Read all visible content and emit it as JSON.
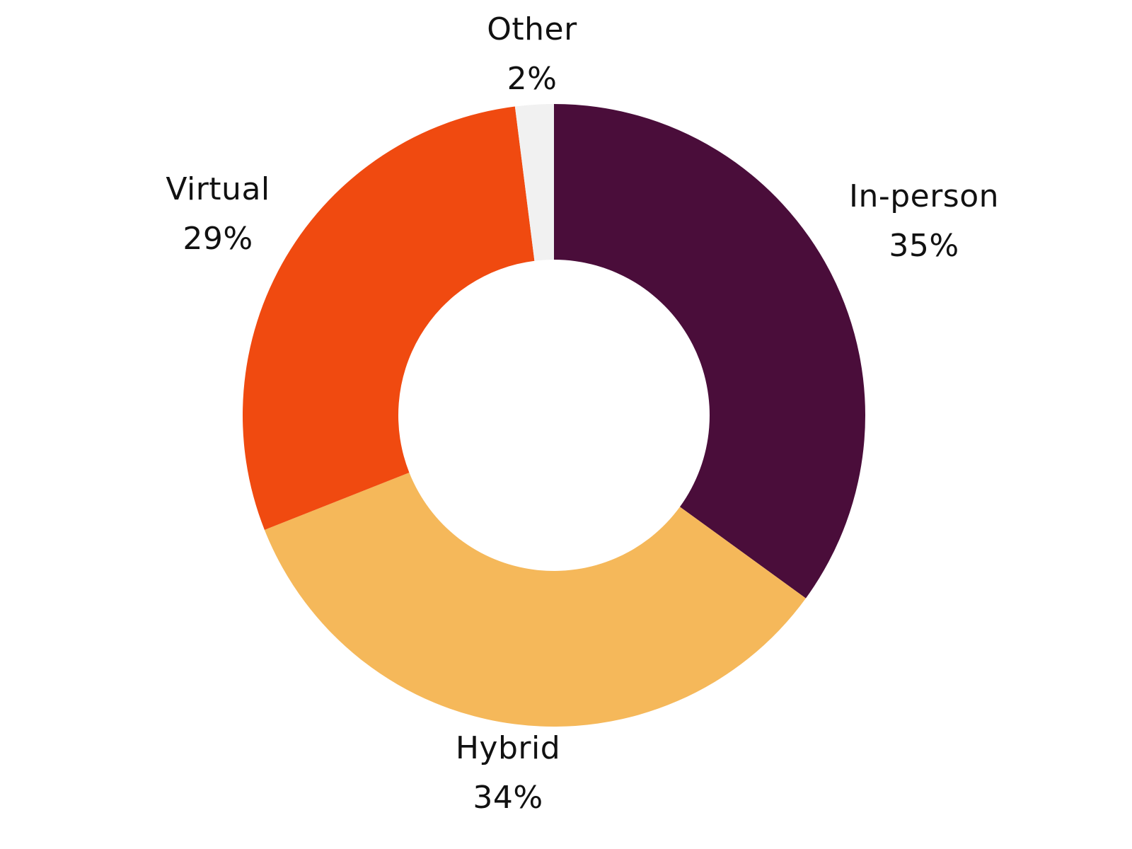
{
  "chart_data": {
    "type": "pie",
    "subtype": "donut",
    "title": "",
    "categories": [
      "In-person",
      "Hybrid",
      "Virtual",
      "Other"
    ],
    "values": [
      35,
      34,
      29,
      2
    ],
    "unit": "%",
    "colors": [
      "#4a0d3a",
      "#f5b85a",
      "#f04a10",
      "#f1f1f1"
    ],
    "start_angle": "12 o'clock",
    "direction": "clockwise",
    "legend": "none (labels placed outside slices)"
  },
  "labels": [
    {
      "name": "In-person",
      "pct": "35%"
    },
    {
      "name": "Hybrid",
      "pct": "34%"
    },
    {
      "name": "Virtual",
      "pct": "29%"
    },
    {
      "name": "Other",
      "pct": "2%"
    }
  ]
}
